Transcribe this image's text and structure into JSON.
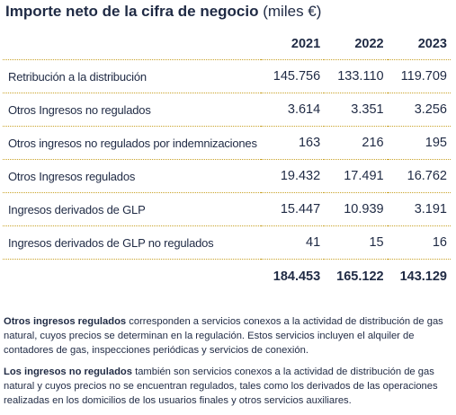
{
  "title": {
    "bold": "Importe neto de la cifra de negocio",
    "unit": "(miles €)"
  },
  "table": {
    "years": [
      "2021",
      "2022",
      "2023"
    ],
    "rows": [
      {
        "label": "Retribución a la distribución",
        "values": [
          "145.756",
          "133.110",
          "119.709"
        ]
      },
      {
        "label": "Otros Ingresos no regulados",
        "values": [
          "3.614",
          "3.351",
          "3.256"
        ]
      },
      {
        "label": "Otros ingresos no regulados por indemnizaciones",
        "values": [
          "163",
          "216",
          "195"
        ]
      },
      {
        "label": "Otros Ingresos regulados",
        "values": [
          "19.432",
          "17.491",
          "16.762"
        ]
      },
      {
        "label": "Ingresos derivados de GLP",
        "values": [
          "15.447",
          "10.939",
          "3.191"
        ]
      },
      {
        "label": "Ingresos derivados de GLP no regulados",
        "values": [
          "41",
          "15",
          "16"
        ]
      }
    ],
    "totals": [
      "184.453",
      "165.122",
      "143.129"
    ]
  },
  "notes": [
    {
      "bold": "Otros ingresos regulados",
      "text": " corresponden a servicios conexos a la actividad de distribución de gas natural, cuyos precios se determinan en la regulación. Estos servicios incluyen el alquiler de contadores de gas, inspecciones periódicas y servicios de conexión."
    },
    {
      "bold": "Los ingresos no regulados",
      "text": " también son servicios conexos a la actividad de distribución de gas natural y cuyos precios no se encuentran regulados, tales como los derivados de las operaciones realizadas en los domicilios de los usuarios finales y otros servicios auxiliares."
    }
  ]
}
